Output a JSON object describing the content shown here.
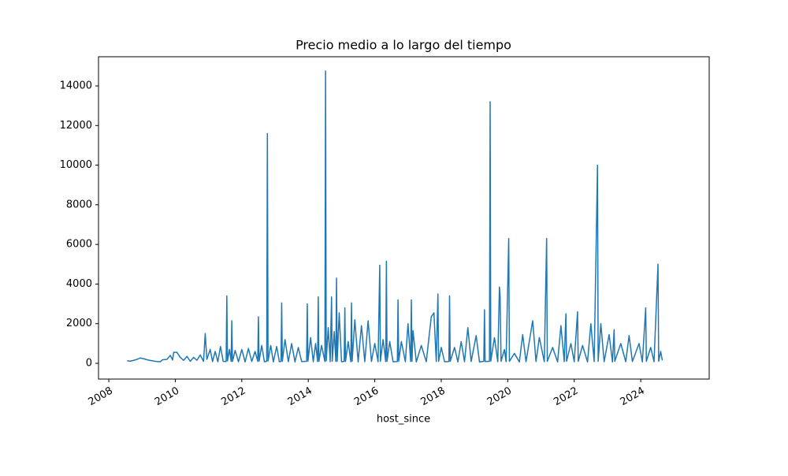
{
  "chart_data": {
    "type": "line",
    "title": "Precio medio a lo largo del tiempo",
    "x_label": "host_since",
    "color": "#1f77b4",
    "x": [
      2008.55,
      2008.65,
      2008.75,
      2008.85,
      2008.95,
      2009.05,
      2009.2,
      2009.4,
      2009.55,
      2009.62,
      2009.75,
      2009.85,
      2009.92,
      2009.95,
      2010.05,
      2010.15,
      2010.25,
      2010.35,
      2010.45,
      2010.55,
      2010.65,
      2010.75,
      2010.85,
      2010.9,
      2010.95,
      2011.05,
      2011.12,
      2011.2,
      2011.28,
      2011.36,
      2011.44,
      2011.53,
      2011.55,
      2011.57,
      2011.63,
      2011.68,
      2011.7,
      2011.72,
      2011.8,
      2011.9,
      2012.0,
      2012.1,
      2012.2,
      2012.3,
      2012.4,
      2012.48,
      2012.5,
      2012.52,
      2012.6,
      2012.68,
      2012.75,
      2012.77,
      2012.79,
      2012.87,
      2012.95,
      2013.05,
      2013.13,
      2013.18,
      2013.2,
      2013.22,
      2013.3,
      2013.4,
      2013.5,
      2013.6,
      2013.7,
      2013.8,
      2013.95,
      2013.97,
      2013.99,
      2014.07,
      2014.15,
      2014.22,
      2014.28,
      2014.3,
      2014.32,
      2014.4,
      2014.5,
      2014.52,
      2014.54,
      2014.6,
      2014.66,
      2014.7,
      2014.72,
      2014.78,
      2014.83,
      2014.85,
      2014.87,
      2014.93,
      2015.0,
      2015.08,
      2015.1,
      2015.12,
      2015.2,
      2015.28,
      2015.3,
      2015.32,
      2015.4,
      2015.5,
      2015.6,
      2015.7,
      2015.8,
      2015.9,
      2016.0,
      2016.1,
      2016.15,
      2016.17,
      2016.25,
      2016.33,
      2016.35,
      2016.37,
      2016.45,
      2016.55,
      2016.68,
      2016.7,
      2016.72,
      2016.8,
      2016.92,
      2017.0,
      2017.08,
      2017.1,
      2017.12,
      2017.15,
      2017.25,
      2017.4,
      2017.55,
      2017.7,
      2017.78,
      2017.85,
      2017.9,
      2017.92,
      2018.0,
      2018.1,
      2018.23,
      2018.25,
      2018.27,
      2018.4,
      2018.5,
      2018.6,
      2018.7,
      2018.8,
      2018.9,
      2019.05,
      2019.15,
      2019.28,
      2019.3,
      2019.32,
      2019.45,
      2019.47,
      2019.49,
      2019.6,
      2019.7,
      2019.75,
      2019.77,
      2019.8,
      2019.9,
      2019.95,
      2020.03,
      2020.05,
      2020.2,
      2020.35,
      2020.45,
      2020.55,
      2020.75,
      2020.85,
      2020.95,
      2021.1,
      2021.17,
      2021.19,
      2021.35,
      2021.5,
      2021.6,
      2021.7,
      2021.75,
      2021.77,
      2021.9,
      2022.0,
      2022.1,
      2022.12,
      2022.25,
      2022.4,
      2022.5,
      2022.6,
      2022.7,
      2022.72,
      2022.8,
      2022.9,
      2023.05,
      2023.15,
      2023.2,
      2023.22,
      2023.4,
      2023.55,
      2023.65,
      2023.75,
      2023.95,
      2024.05,
      2024.15,
      2024.17,
      2024.3,
      2024.4,
      2024.52,
      2024.54,
      2024.6,
      2024.65
    ],
    "values": [
      130,
      110,
      150,
      200,
      270,
      230,
      160,
      100,
      80,
      180,
      200,
      400,
      170,
      550,
      550,
      300,
      150,
      350,
      100,
      300,
      150,
      420,
      100,
      1500,
      200,
      700,
      90,
      600,
      80,
      850,
      100,
      90,
      3400,
      120,
      700,
      100,
      2150,
      90,
      650,
      80,
      700,
      70,
      750,
      90,
      600,
      100,
      2350,
      110,
      900,
      80,
      100,
      11600,
      120,
      900,
      70,
      850,
      80,
      100,
      3050,
      100,
      1200,
      80,
      1000,
      70,
      800,
      90,
      100,
      3000,
      110,
      1300,
      80,
      1000,
      90,
      3350,
      100,
      900,
      90,
      14750,
      120,
      1800,
      80,
      3350,
      100,
      1600,
      90,
      4300,
      100,
      2550,
      80,
      100,
      2800,
      90,
      1100,
      80,
      3050,
      100,
      2200,
      70,
      1900,
      80,
      2150,
      90,
      1000,
      80,
      4950,
      100,
      1200,
      90,
      5150,
      100,
      1100,
      80,
      90,
      3200,
      100,
      1100,
      80,
      2000,
      90,
      3200,
      100,
      1650,
      70,
      900,
      80,
      2350,
      2550,
      90,
      3500,
      100,
      800,
      80,
      90,
      3400,
      100,
      800,
      70,
      1100,
      80,
      1800,
      90,
      1400,
      70,
      100,
      2700,
      90,
      100,
      13200,
      110,
      1300,
      80,
      3850,
      3400,
      100,
      700,
      80,
      6300,
      100,
      500,
      70,
      1450,
      80,
      2150,
      90,
      1300,
      80,
      6300,
      100,
      800,
      70,
      1900,
      90,
      2500,
      100,
      1000,
      80,
      2600,
      100,
      900,
      70,
      2000,
      90,
      10000,
      100,
      2000,
      80,
      1450,
      70,
      1700,
      100,
      1000,
      80,
      1400,
      90,
      1000,
      70,
      2800,
      100,
      800,
      80,
      5000,
      100,
      600,
      150
    ],
    "xlim": [
      2007.69,
      2026.06
    ],
    "xticks": [
      2008,
      2010,
      2012,
      2014,
      2016,
      2018,
      2020,
      2022,
      2024
    ],
    "ylim": [
      -795,
      15471
    ],
    "yticks": [
      0,
      2000,
      4000,
      6000,
      8000,
      10000,
      12000,
      14000
    ]
  }
}
